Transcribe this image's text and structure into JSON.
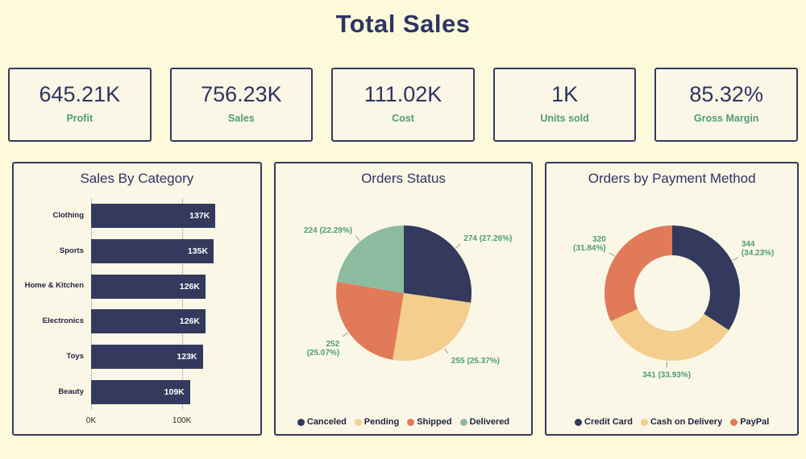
{
  "page": {
    "title": "Total Sales"
  },
  "colors": {
    "background": "#FCFADB",
    "card_background": "#FBF7E7",
    "navy": "#333A5E",
    "tan": "#F3CE8D",
    "coral": "#E17A58",
    "sage": "#8CBCA0",
    "green_label": "#4E9B7C"
  },
  "kpis": [
    {
      "value": "645.21K",
      "label": "Profit"
    },
    {
      "value": "756.23K",
      "label": "Sales"
    },
    {
      "value": "111.02K",
      "label": "Cost"
    },
    {
      "value": "1K",
      "label": "Units sold"
    },
    {
      "value": "85.32%",
      "label": "Gross Margin"
    }
  ],
  "chart_data": [
    {
      "type": "bar",
      "title": "Sales By Category",
      "orientation": "horizontal",
      "categories": [
        "Clothing",
        "Sports",
        "Home & Kitchen",
        "Electronics",
        "Toys",
        "Beauty"
      ],
      "values": [
        137,
        135,
        126,
        126,
        123,
        109
      ],
      "value_labels": [
        "137K",
        "135K",
        "126K",
        "126K",
        "123K",
        "109K"
      ],
      "xmax": 140,
      "xticks": [
        {
          "value": 0,
          "label": "0K"
        },
        {
          "value": 100,
          "label": "100K"
        }
      ],
      "bar_color": "#333A5E",
      "grid": "dotted-vertical"
    },
    {
      "type": "pie",
      "title": "Orders Status",
      "labels": [
        "Canceled",
        "Pending",
        "Shipped",
        "Delivered"
      ],
      "values": [
        274,
        255,
        252,
        224
      ],
      "percents": [
        "27.26%",
        "25.37%",
        "25.07%",
        "22.29%"
      ],
      "colors": [
        "#333A5E",
        "#F3CE8D",
        "#E17A58",
        "#8CBCA0"
      ],
      "two_line": [
        false,
        false,
        true,
        false
      ],
      "legend_position": "bottom"
    },
    {
      "type": "donut",
      "title": "Orders by Payment Method",
      "labels": [
        "Credit Card",
        "Cash on Delivery",
        "PayPal"
      ],
      "values": [
        344,
        341,
        320
      ],
      "percents": [
        "34.23%",
        "33.93%",
        "31.84%"
      ],
      "colors": [
        "#333A5E",
        "#F3CE8D",
        "#E17A58"
      ],
      "two_line": [
        true,
        false,
        true
      ],
      "legend_position": "bottom"
    }
  ]
}
